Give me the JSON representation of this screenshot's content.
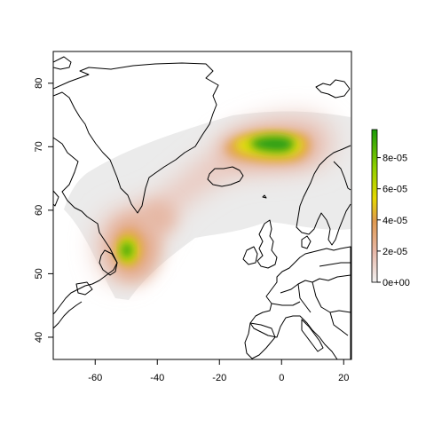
{
  "map": {
    "x_ticks": [
      "-60",
      "-40",
      "-20",
      "0",
      "20"
    ],
    "y_ticks": [
      "40",
      "50",
      "60",
      "70",
      "80"
    ],
    "xlim": [
      -73.5,
      22.5
    ],
    "ylim": [
      36.5,
      85
    ],
    "legend": {
      "labels": [
        "0e+00",
        "2e-05",
        "4e-05",
        "6e-05",
        "8e-05"
      ],
      "range": [
        0,
        9.8e-05
      ],
      "colors": [
        "#f2f2f2",
        "#e8b8a8",
        "#e09a50",
        "#e6d800",
        "#90d000",
        "#1a9a0a"
      ]
    }
  },
  "colors": {
    "range_shade": "#ebebeb",
    "low": "#e8c2b8",
    "mid": "#e4a050",
    "high_yellow": "#e2e000",
    "high_green": "#2aa010"
  }
}
